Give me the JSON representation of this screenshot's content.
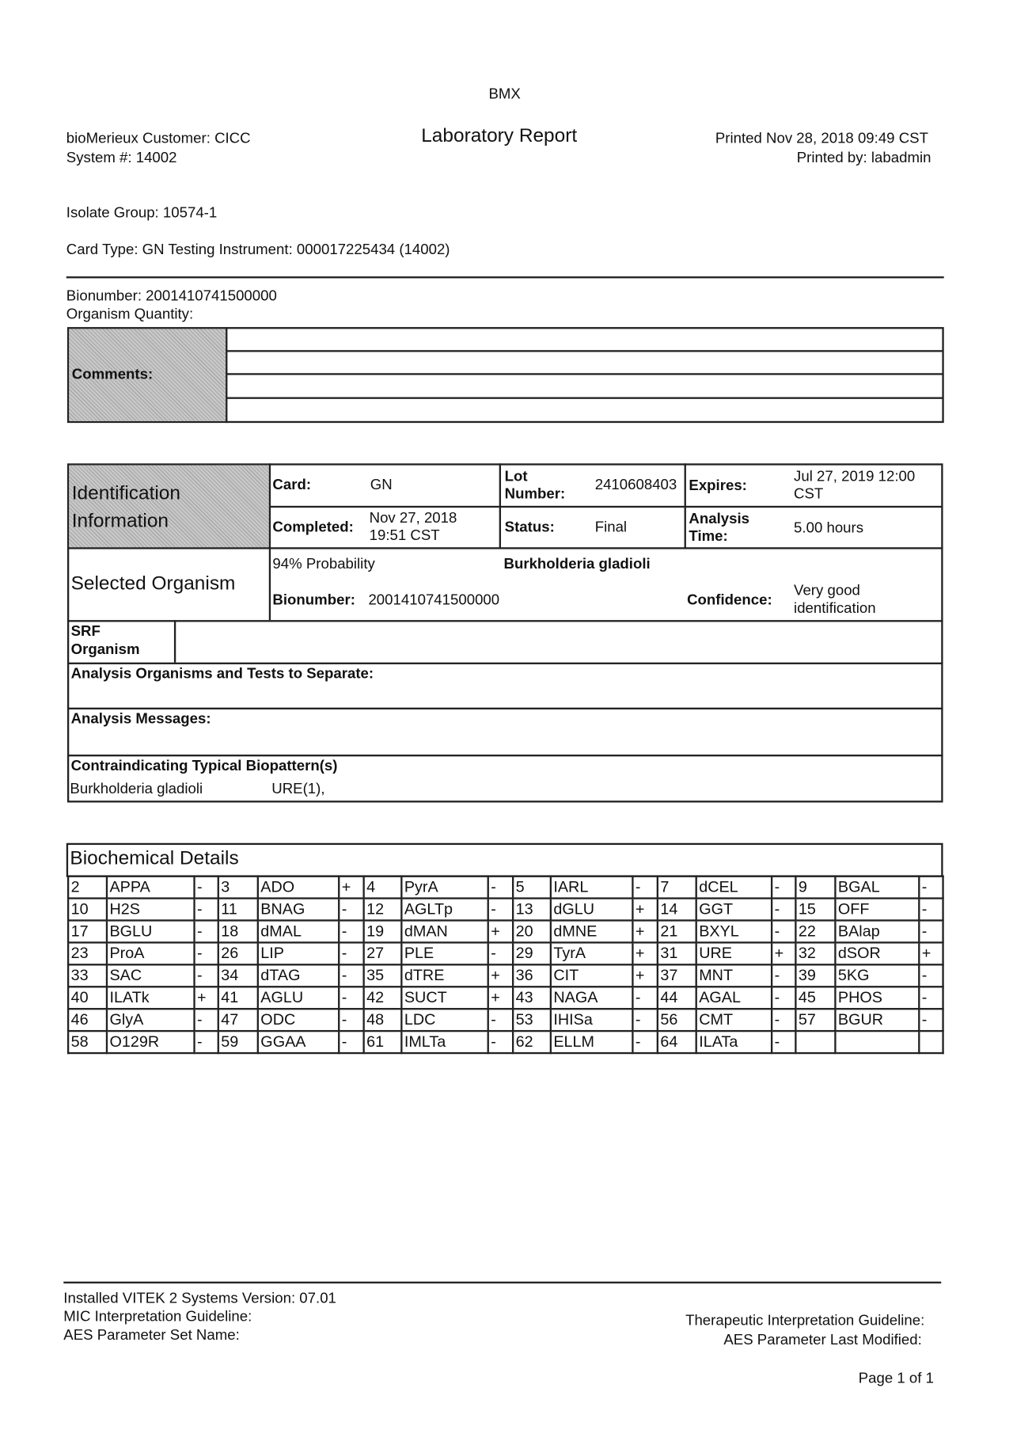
{
  "header": {
    "system_name": "BMX",
    "title": "Laboratory Report",
    "customer": "bioMerieux Customer: CICC",
    "system_number": "System #: 14002",
    "printed": "Printed Nov 28, 2018  09:49 CST",
    "printed_by": "Printed by: labadmin"
  },
  "isolate_group": "Isolate Group: 10574-1",
  "card_type": "Card  Type: GN  Testing Instrument: 000017225434 (14002)",
  "bionumber": "Bionumber: 2001410741500000",
  "organism_quantity": "Organism Quantity:",
  "comments_label": "Comments:",
  "identification": {
    "label": "Identification Information",
    "card_label": "Card:",
    "card_value": "GN",
    "lot_label": "Lot Number:",
    "lot_value": "2410608403",
    "expires_label": "Expires:",
    "expires_value": "Jul 27, 2019  12:00 CST",
    "completed_label": "Completed:",
    "completed_value": "Nov 27, 2018 19:51 CST",
    "status_label": "Status:",
    "status_value": "Final",
    "analysis_time_label": "Analysis Time:",
    "analysis_time_value": "5.00  hours"
  },
  "selected_organism": {
    "label": "Selected Organism",
    "probability": "94% Probability",
    "name": "Burkholderia gladioli",
    "bionumber_label": "Bionumber:",
    "bionumber_value": "2001410741500000",
    "confidence_label": "Confidence:",
    "confidence_value": "Very good identification"
  },
  "srf_label": "SRF Organism",
  "analysis_organisms_label": "Analysis Organisms and Tests to Separate:",
  "analysis_messages_label": "Analysis Messages:",
  "contraindicating": {
    "label": "Contraindicating Typical Biopattern(s)",
    "organism": "Burkholderia gladioli",
    "tests": "URE(1),"
  },
  "biochemical": {
    "title": "Biochemical Details",
    "rows": [
      [
        [
          "2",
          "APPA",
          "-"
        ],
        [
          "3",
          "ADO",
          "+"
        ],
        [
          "4",
          "PyrA",
          "-"
        ],
        [
          "5",
          "IARL",
          "-"
        ],
        [
          "7",
          "dCEL",
          "-"
        ],
        [
          "9",
          "BGAL",
          "-"
        ]
      ],
      [
        [
          "10",
          "H2S",
          "-"
        ],
        [
          "11",
          "BNAG",
          "-"
        ],
        [
          "12",
          "AGLTp",
          "-"
        ],
        [
          "13",
          "dGLU",
          "+"
        ],
        [
          "14",
          "GGT",
          "-"
        ],
        [
          "15",
          "OFF",
          "-"
        ]
      ],
      [
        [
          "17",
          "BGLU",
          "-"
        ],
        [
          "18",
          "dMAL",
          "-"
        ],
        [
          "19",
          "dMAN",
          "+"
        ],
        [
          "20",
          "dMNE",
          "+"
        ],
        [
          "21",
          "BXYL",
          "-"
        ],
        [
          "22",
          "BAlap",
          "-"
        ]
      ],
      [
        [
          "23",
          "ProA",
          "-"
        ],
        [
          "26",
          "LIP",
          "-"
        ],
        [
          "27",
          "PLE",
          "-"
        ],
        [
          "29",
          "TyrA",
          "+"
        ],
        [
          "31",
          "URE",
          "+"
        ],
        [
          "32",
          "dSOR",
          "+"
        ]
      ],
      [
        [
          "33",
          "SAC",
          "-"
        ],
        [
          "34",
          "dTAG",
          "-"
        ],
        [
          "35",
          "dTRE",
          "+"
        ],
        [
          "36",
          "CIT",
          "+"
        ],
        [
          "37",
          "MNT",
          "-"
        ],
        [
          "39",
          "5KG",
          "-"
        ]
      ],
      [
        [
          "40",
          "ILATk",
          "+"
        ],
        [
          "41",
          "AGLU",
          "-"
        ],
        [
          "42",
          "SUCT",
          "+"
        ],
        [
          "43",
          "NAGA",
          "-"
        ],
        [
          "44",
          "AGAL",
          "-"
        ],
        [
          "45",
          "PHOS",
          "-"
        ]
      ],
      [
        [
          "46",
          "GlyA",
          "-"
        ],
        [
          "47",
          "ODC",
          "-"
        ],
        [
          "48",
          "LDC",
          "-"
        ],
        [
          "53",
          "IHISa",
          "-"
        ],
        [
          "56",
          "CMT",
          "-"
        ],
        [
          "57",
          "BGUR",
          "-"
        ]
      ],
      [
        [
          "58",
          "O129R",
          "-"
        ],
        [
          "59",
          "GGAA",
          "-"
        ],
        [
          "61",
          "IMLTa",
          "-"
        ],
        [
          "62",
          "ELLM",
          "-"
        ],
        [
          "64",
          "ILATa",
          "-"
        ],
        [
          "",
          "",
          ""
        ]
      ]
    ]
  },
  "footer": {
    "version": "Installed VITEK 2 Systems Version: 07.01",
    "mic": "MIC Interpretation Guideline:",
    "aes_set": "AES Parameter Set Name:",
    "therapeutic": "Therapeutic Interpretation Guideline:",
    "aes_modified": "AES Parameter Last Modified:",
    "page": "Page 1 of 1"
  }
}
